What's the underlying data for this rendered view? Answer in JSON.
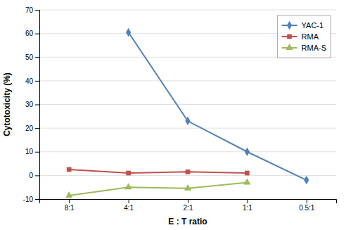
{
  "chart_data": {
    "type": "line",
    "categories": [
      "8:1",
      "4:1",
      "2:1",
      "1:1",
      "0.5:1"
    ],
    "series": [
      {
        "name": "YAC-1",
        "color": "#4F81BD",
        "marker": "diamond",
        "values": [
          null,
          60.5,
          23,
          10,
          -2
        ]
      },
      {
        "name": "RMA",
        "color": "#C0504D",
        "marker": "square",
        "values": [
          2.5,
          1,
          1.5,
          1,
          null
        ]
      },
      {
        "name": "RMA-S",
        "color": "#9BBB59",
        "marker": "triangle",
        "values": [
          -8.5,
          -5,
          -5.5,
          -3,
          null
        ]
      }
    ],
    "xlabel": "E : T ratio",
    "ylabel": "Cytotoxicity (%)",
    "ylim": [
      -10,
      70
    ],
    "yticks": [
      -10,
      0,
      10,
      20,
      30,
      40,
      50,
      60,
      70
    ],
    "grid": true,
    "legend": "upper right"
  }
}
